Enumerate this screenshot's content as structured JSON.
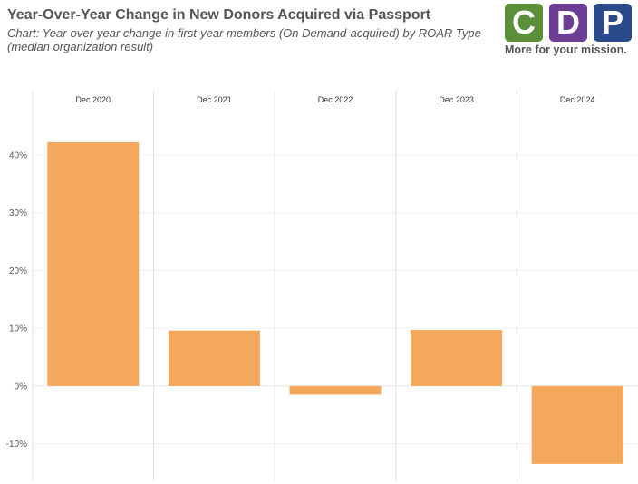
{
  "title": "Year-Over-Year Change in New Donors Acquired via Passport",
  "subtitle": "Chart: Year-over-year change in first-year members (On Demand-acquired) by ROAR Type (median organization result)",
  "logo": {
    "letters": [
      "C",
      "D",
      "P"
    ],
    "colors": [
      "#5b8f3a",
      "#6b3d94",
      "#2b4a8c"
    ],
    "tagline": "More for your mission."
  },
  "chart_data": {
    "type": "bar",
    "categories": [
      "Dec 2020",
      "Dec 2021",
      "Dec 2022",
      "Dec 2023",
      "Dec 2024"
    ],
    "values": [
      42.2,
      9.6,
      -1.5,
      9.7,
      -13.5
    ],
    "ylim": [
      -16.5,
      48
    ],
    "yticks": [
      -10,
      0,
      10,
      20,
      30,
      40
    ],
    "ytick_labels": [
      "-10%",
      "0%",
      "10%",
      "20%",
      "30%",
      "40%"
    ],
    "bar_color": "#f4a85c",
    "grid": true,
    "xlabel": "",
    "ylabel": ""
  }
}
